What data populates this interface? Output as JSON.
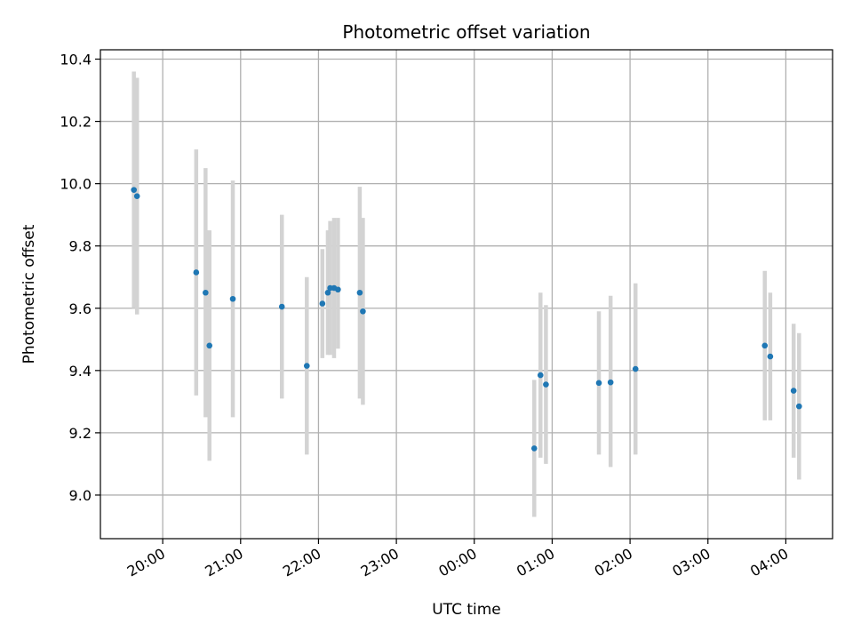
{
  "chart_data": {
    "type": "scatter",
    "title": "Photometric offset variation",
    "xlabel": "UTC time",
    "ylabel": "Photometric offset",
    "x_unit": "hours",
    "x_ticks": [
      {
        "label": "20:00",
        "value": 20
      },
      {
        "label": "21:00",
        "value": 21
      },
      {
        "label": "22:00",
        "value": 22
      },
      {
        "label": "23:00",
        "value": 23
      },
      {
        "label": "00:00",
        "value": 24
      },
      {
        "label": "01:00",
        "value": 25
      },
      {
        "label": "02:00",
        "value": 26
      },
      {
        "label": "03:00",
        "value": 27
      },
      {
        "label": "04:00",
        "value": 28
      }
    ],
    "xlim": [
      19.2,
      28.6
    ],
    "y_ticks": [
      "9.0",
      "9.2",
      "9.4",
      "9.6",
      "9.8",
      "10.0",
      "10.2",
      "10.4"
    ],
    "ylim": [
      8.86,
      10.43
    ],
    "grid": true,
    "colors": {
      "points": "#1f77b4",
      "errorbars": "#d3d3d3",
      "grid": "#b0b0b0"
    },
    "points": [
      {
        "x": 19.63,
        "y": 9.98,
        "lo": 9.6,
        "hi": 10.36
      },
      {
        "x": 19.67,
        "y": 9.96,
        "lo": 9.58,
        "hi": 10.34
      },
      {
        "x": 20.43,
        "y": 9.715,
        "lo": 9.32,
        "hi": 10.11
      },
      {
        "x": 20.55,
        "y": 9.65,
        "lo": 9.25,
        "hi": 10.05
      },
      {
        "x": 20.6,
        "y": 9.48,
        "lo": 9.11,
        "hi": 9.85
      },
      {
        "x": 20.9,
        "y": 9.63,
        "lo": 9.25,
        "hi": 10.01
      },
      {
        "x": 21.53,
        "y": 9.605,
        "lo": 9.31,
        "hi": 9.9
      },
      {
        "x": 21.85,
        "y": 9.415,
        "lo": 9.13,
        "hi": 9.7
      },
      {
        "x": 22.05,
        "y": 9.615,
        "lo": 9.44,
        "hi": 9.79
      },
      {
        "x": 22.12,
        "y": 9.65,
        "lo": 9.45,
        "hi": 9.85
      },
      {
        "x": 22.15,
        "y": 9.665,
        "lo": 9.45,
        "hi": 9.88
      },
      {
        "x": 22.2,
        "y": 9.665,
        "lo": 9.44,
        "hi": 9.89
      },
      {
        "x": 22.25,
        "y": 9.66,
        "lo": 9.47,
        "hi": 9.89
      },
      {
        "x": 22.53,
        "y": 9.65,
        "lo": 9.31,
        "hi": 9.99
      },
      {
        "x": 22.57,
        "y": 9.59,
        "lo": 9.29,
        "hi": 9.89
      },
      {
        "x": 24.77,
        "y": 9.15,
        "lo": 8.93,
        "hi": 9.37
      },
      {
        "x": 24.85,
        "y": 9.385,
        "lo": 9.12,
        "hi": 9.65
      },
      {
        "x": 24.92,
        "y": 9.355,
        "lo": 9.1,
        "hi": 9.61
      },
      {
        "x": 25.6,
        "y": 9.36,
        "lo": 9.13,
        "hi": 9.59
      },
      {
        "x": 25.75,
        "y": 9.362,
        "lo": 9.09,
        "hi": 9.64
      },
      {
        "x": 26.07,
        "y": 9.405,
        "lo": 9.13,
        "hi": 9.68
      },
      {
        "x": 27.73,
        "y": 9.48,
        "lo": 9.24,
        "hi": 9.72
      },
      {
        "x": 27.8,
        "y": 9.445,
        "lo": 9.24,
        "hi": 9.65
      },
      {
        "x": 28.1,
        "y": 9.335,
        "lo": 9.12,
        "hi": 9.55
      },
      {
        "x": 28.17,
        "y": 9.285,
        "lo": 9.05,
        "hi": 9.52
      }
    ]
  }
}
